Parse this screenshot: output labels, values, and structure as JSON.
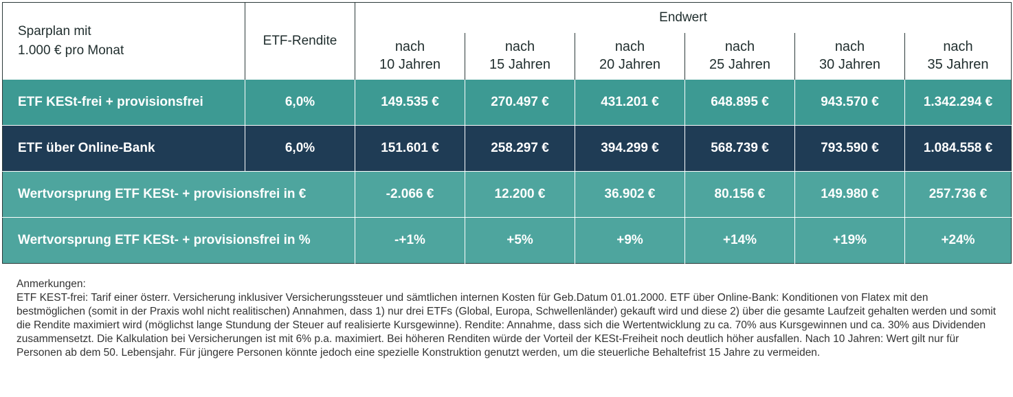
{
  "header": {
    "sparplan_line1": "Sparplan mit",
    "sparplan_line2": "1.000 € pro Monat",
    "etf_rendite": "ETF-Rendite",
    "endwert": "Endwert",
    "periods": [
      {
        "line1": "nach",
        "line2": "10 Jahren"
      },
      {
        "line1": "nach",
        "line2": "15 Jahren"
      },
      {
        "line1": "nach",
        "line2": "20 Jahren"
      },
      {
        "line1": "nach",
        "line2": "25 Jahren"
      },
      {
        "line1": "nach",
        "line2": "30 Jahren"
      },
      {
        "line1": "nach",
        "line2": "35 Jahren"
      }
    ]
  },
  "rows": [
    {
      "label": "ETF KESt-frei + provisionsfrei",
      "rendite": "6,0%",
      "values": [
        "149.535 €",
        "270.497 €",
        "431.201 €",
        "648.895 €",
        "943.570 €",
        "1.342.294 €"
      ],
      "color": "#3d9a93"
    },
    {
      "label": "ETF über Online-Bank",
      "rendite": "6,0%",
      "values": [
        "151.601 €",
        "258.297 €",
        "394.299 €",
        "568.739 €",
        "793.590 €",
        "1.084.558 €"
      ],
      "color": "#1f3c55"
    },
    {
      "label": "Wertvorsprung ETF KESt- + provisionsfrei in €",
      "rendite": "",
      "values": [
        "-2.066 €",
        "12.200 €",
        "36.902 €",
        "80.156 €",
        "149.980 €",
        "257.736 €"
      ],
      "color": "#4ea59e"
    },
    {
      "label": "Wertvorsprung ETF KESt- + provisionsfrei in %",
      "rendite": "",
      "values": [
        "-+1%",
        "+5%",
        "+9%",
        "+14%",
        "+19%",
        "+24%"
      ],
      "color": "#4ea59e"
    }
  ],
  "notes": {
    "title": "Anmerkungen:",
    "body": "ETF KEST-frei: Tarif einer österr. Versicherung inklusiver Versicherungssteuer und sämtlichen internen Kosten für Geb.Datum 01.01.2000. ETF über Online-Bank: Konditionen von Flatex mit den bestmöglichen (somit in der Praxis wohl nicht realitischen) Annahmen, dass 1) nur drei ETFs (Global, Europa, Schwellenländer) gekauft wird und diese 2) über die gesamte Laufzeit gehalten werden und somit die Rendite maximiert wird (möglichst lange Stundung der Steuer auf realisierte Kursgewinne). Rendite: Annahme, dass sich die Wertentwicklung zu ca. 70% aus Kursgewinnen und ca. 30% aus Dividenden zusammensetzt. Die Kalkulation bei Versicherungen ist mit 6% p.a. maximiert. Bei höheren Renditen würde der Vorteil der KESt-Freiheit noch deutlich höher ausfallen. Nach 10 Jahren: Wert gilt nur für Personen ab dem 50. Lebensjahr. Für jüngere Personen könnte jedoch eine spezielle Konstruktion genutzt werden, um die steuerliche Behaltefrist 15 Jahre zu vermeiden."
  }
}
